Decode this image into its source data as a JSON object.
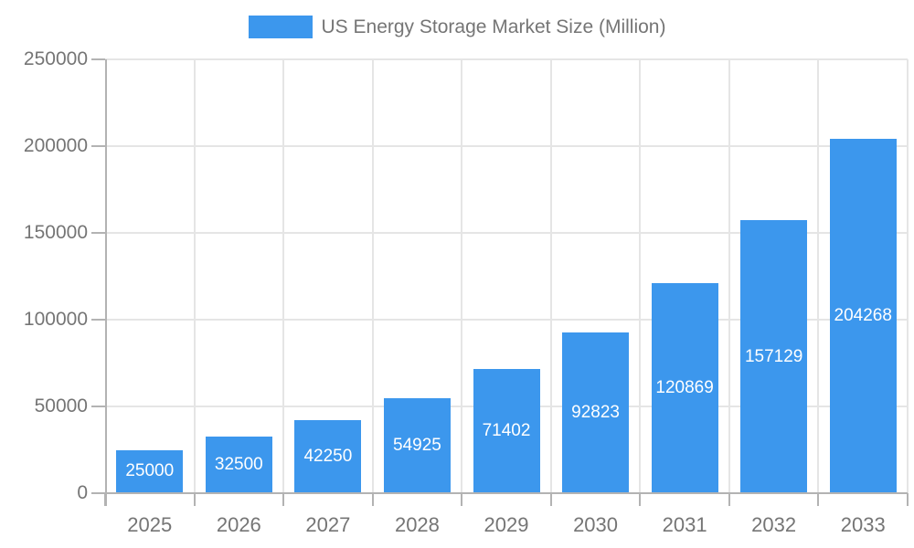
{
  "legend": {
    "label": "US Energy Storage Market Size (Million)",
    "swatch_color": "#3c97ed"
  },
  "chart_data": {
    "type": "bar",
    "title": "US Energy Storage Market Size (Million)",
    "series_name": "US Energy Storage Market Size (Million)",
    "categories": [
      "2025",
      "2026",
      "2027",
      "2028",
      "2029",
      "2030",
      "2031",
      "2032",
      "2033"
    ],
    "values": [
      25000,
      32500,
      42250,
      54925,
      71402,
      92823,
      120869,
      157129,
      204268
    ],
    "xlabel": "",
    "ylabel": "",
    "ylim": [
      0,
      250000
    ],
    "yticks": [
      0,
      50000,
      100000,
      150000,
      200000,
      250000
    ],
    "grid": true,
    "legend_position": "top",
    "bar_color": "#3c97ed",
    "bar_label_color": "#ffffff",
    "axis_text_color": "#757575",
    "gridline_color": "#e5e5e5",
    "axis_line_color": "#b3b3b3",
    "background_color": "#ffffff"
  }
}
